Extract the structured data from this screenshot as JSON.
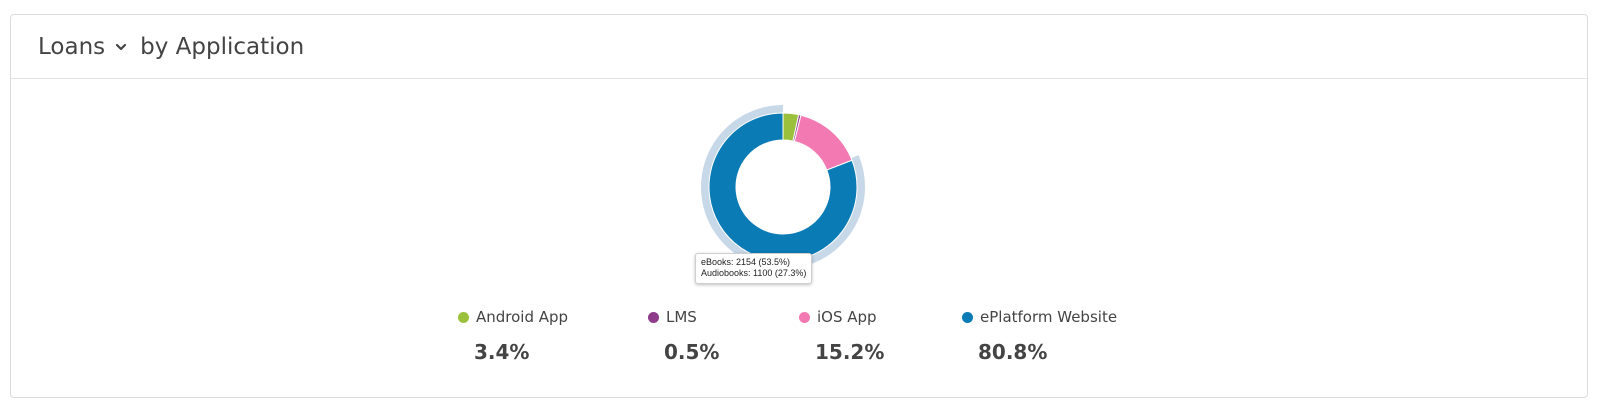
{
  "header": {
    "metric": "Loans",
    "title_suffix": "by Application"
  },
  "colors": {
    "android": "#9bc13c",
    "lms": "#8e3b8a",
    "ios": "#f279b2",
    "eplatform": "#0a7bb4",
    "outer_ring": "#c7d8e8"
  },
  "chart_data": {
    "type": "pie",
    "title": "",
    "series": [
      {
        "label": "Android App",
        "value": 3.4,
        "color": "#9bc13c"
      },
      {
        "label": "LMS",
        "value": 0.5,
        "color": "#8e3b8a"
      },
      {
        "label": "iOS App",
        "value": 15.2,
        "color": "#f279b2"
      },
      {
        "label": "ePlatform Website",
        "value": 80.8,
        "color": "#0a7bb4"
      }
    ],
    "outer_ring_fraction": 0.808
  },
  "tooltip": {
    "line1": "eBooks: 2154 (53.5%)",
    "line2": "Audiobooks: 1100 (27.3%)"
  },
  "legend": [
    {
      "label": "Android App",
      "value": "3.4%",
      "color": "#9bc13c"
    },
    {
      "label": "LMS",
      "value": "0.5%",
      "color": "#8e3b8a"
    },
    {
      "label": "iOS App",
      "value": "15.2%",
      "color": "#f279b2"
    },
    {
      "label": "ePlatform Website",
      "value": "80.8%",
      "color": "#0a7bb4"
    }
  ]
}
